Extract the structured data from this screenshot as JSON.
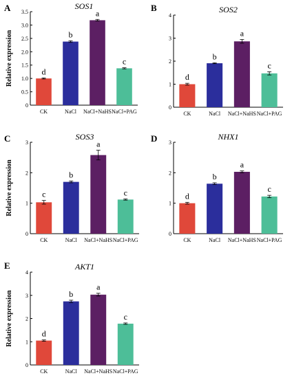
{
  "chart_data": [
    {
      "panel": "A",
      "type": "bar",
      "title": "SOS1",
      "ylabel": "Relative expression",
      "categories": [
        "CK",
        "NaCl",
        "NaCl+NaHS",
        "NaCl+PAG"
      ],
      "values": [
        1.0,
        2.38,
        3.18,
        1.38
      ],
      "errors": [
        0.02,
        0.03,
        0.03,
        0.02
      ],
      "letters": [
        "d",
        "b",
        "a",
        "c"
      ],
      "ylim": [
        0,
        3.5
      ],
      "yticks": [
        0,
        0.5,
        1.0,
        1.5,
        2.0,
        2.5,
        3.0,
        3.5
      ],
      "ytick_labels": [
        "0",
        "0.5",
        "1.0",
        "1.5",
        "2.0",
        "2.5",
        "3.0",
        "3.5"
      ]
    },
    {
      "panel": "B",
      "type": "bar",
      "title": "SOS2",
      "ylabel": "",
      "categories": [
        "CK",
        "NaCl",
        "NaCl+NaHS",
        "NaCl+PAG"
      ],
      "values": [
        1.0,
        1.91,
        2.86,
        1.47
      ],
      "errors": [
        0.04,
        0.02,
        0.08,
        0.07
      ],
      "letters": [
        "d",
        "b",
        "a",
        "c"
      ],
      "ylim": [
        0,
        4
      ],
      "yticks": [
        0,
        1,
        2,
        3,
        4
      ],
      "ytick_labels": [
        "0",
        "1",
        "2",
        "3",
        "4"
      ]
    },
    {
      "panel": "C",
      "type": "bar",
      "title": "SOS3",
      "ylabel": "Relative expression",
      "categories": [
        "CK",
        "NaCl",
        "NaCl+NaHS",
        "NaCl+PAG"
      ],
      "values": [
        1.03,
        1.7,
        2.58,
        1.12
      ],
      "errors": [
        0.06,
        0.03,
        0.16,
        0.02
      ],
      "letters": [
        "c",
        "b",
        "a",
        "c"
      ],
      "ylim": [
        0,
        3
      ],
      "yticks": [
        0,
        1,
        2,
        3
      ],
      "ytick_labels": [
        "0",
        "1",
        "2",
        "3"
      ]
    },
    {
      "panel": "D",
      "type": "bar",
      "title": "NHX1",
      "ylabel": "",
      "categories": [
        "CK",
        "NaCl",
        "NaCl+NaHS",
        "NaCl+PAG"
      ],
      "values": [
        1.0,
        1.64,
        2.03,
        1.22
      ],
      "errors": [
        0.03,
        0.03,
        0.03,
        0.04
      ],
      "letters": [
        "d",
        "b",
        "a",
        "c"
      ],
      "ylim": [
        0,
        3
      ],
      "yticks": [
        0,
        1,
        2,
        3
      ],
      "ytick_labels": [
        "0",
        "1",
        "2",
        "3"
      ]
    },
    {
      "panel": "E",
      "type": "bar",
      "title": "AKT1",
      "ylabel": "Relative expression",
      "categories": [
        "CK",
        "NaCl",
        "NaCl+NaHS",
        "NaCl+PAG"
      ],
      "values": [
        1.05,
        2.74,
        3.03,
        1.78
      ],
      "errors": [
        0.03,
        0.05,
        0.06,
        0.03
      ],
      "letters": [
        "d",
        "b",
        "a",
        "c"
      ],
      "ylim": [
        0,
        4
      ],
      "yticks": [
        0,
        1,
        2,
        3,
        4
      ],
      "ytick_labels": [
        "0",
        "1",
        "2",
        "3",
        "4"
      ]
    }
  ],
  "bar_colors": [
    "#e0483a",
    "#2b2e9c",
    "#5c1f63",
    "#4dbe98"
  ]
}
